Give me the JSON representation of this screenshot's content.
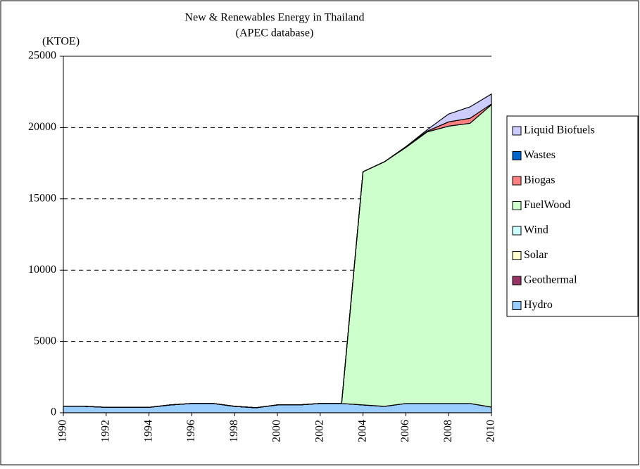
{
  "chart_data": {
    "type": "area",
    "stacked": true,
    "title": "New & Renewables Energy in Thailand",
    "subtitle": "(APEC database)",
    "y_label": "(KTOE)",
    "x": [
      1990,
      1991,
      1992,
      1993,
      1994,
      1995,
      1996,
      1997,
      1998,
      1999,
      2000,
      2001,
      2002,
      2003,
      2004,
      2005,
      2006,
      2007,
      2008,
      2009,
      2010
    ],
    "xlim": [
      1990,
      2010
    ],
    "xticks": [
      1990,
      1992,
      1994,
      1996,
      1998,
      2000,
      2002,
      2004,
      2006,
      2008,
      2010
    ],
    "ylim": [
      0,
      25000
    ],
    "yticks": [
      0,
      5000,
      10000,
      15000,
      20000,
      25000
    ],
    "grid": true,
    "legend": "right",
    "series": [
      {
        "name": "Hydro",
        "color": "#99ccff",
        "values": [
          450,
          450,
          380,
          380,
          380,
          550,
          650,
          650,
          450,
          350,
          550,
          550,
          650,
          650,
          550,
          450,
          650,
          650,
          650,
          650,
          400
        ]
      },
      {
        "name": "Geothermal",
        "color": "#993366",
        "values": [
          0,
          0,
          0,
          0,
          0,
          0,
          0,
          0,
          0,
          0,
          0,
          0,
          0,
          0,
          0,
          0,
          0,
          0,
          0,
          0,
          0
        ]
      },
      {
        "name": "Solar",
        "color": "#ffffcc",
        "values": [
          0,
          0,
          0,
          0,
          0,
          0,
          0,
          0,
          0,
          0,
          0,
          0,
          0,
          0,
          0,
          0,
          0,
          0,
          0,
          0,
          0
        ]
      },
      {
        "name": "Wind",
        "color": "#ccffff",
        "values": [
          0,
          0,
          0,
          0,
          0,
          0,
          0,
          0,
          0,
          0,
          0,
          0,
          0,
          0,
          0,
          0,
          0,
          0,
          0,
          0,
          0
        ]
      },
      {
        "name": "FuelWood",
        "color": "#ccffcc",
        "values": [
          0,
          0,
          0,
          0,
          0,
          0,
          0,
          0,
          0,
          0,
          0,
          0,
          0,
          0,
          16350,
          17150,
          17950,
          19050,
          19450,
          19650,
          21200
        ]
      },
      {
        "name": "Biogas",
        "color": "#ff8080",
        "values": [
          0,
          0,
          0,
          0,
          0,
          0,
          0,
          0,
          0,
          0,
          0,
          0,
          0,
          0,
          0,
          0,
          50,
          50,
          300,
          350,
          50
        ]
      },
      {
        "name": "Wastes",
        "color": "#0066cc",
        "values": [
          0,
          0,
          0,
          0,
          0,
          0,
          0,
          0,
          0,
          0,
          0,
          0,
          0,
          0,
          0,
          0,
          0,
          0,
          0,
          0,
          0
        ]
      },
      {
        "name": "Liquid Biofuels",
        "color": "#ccccff",
        "values": [
          0,
          0,
          0,
          0,
          0,
          0,
          0,
          0,
          0,
          0,
          0,
          0,
          0,
          0,
          0,
          0,
          0,
          100,
          550,
          800,
          700
        ]
      }
    ]
  }
}
